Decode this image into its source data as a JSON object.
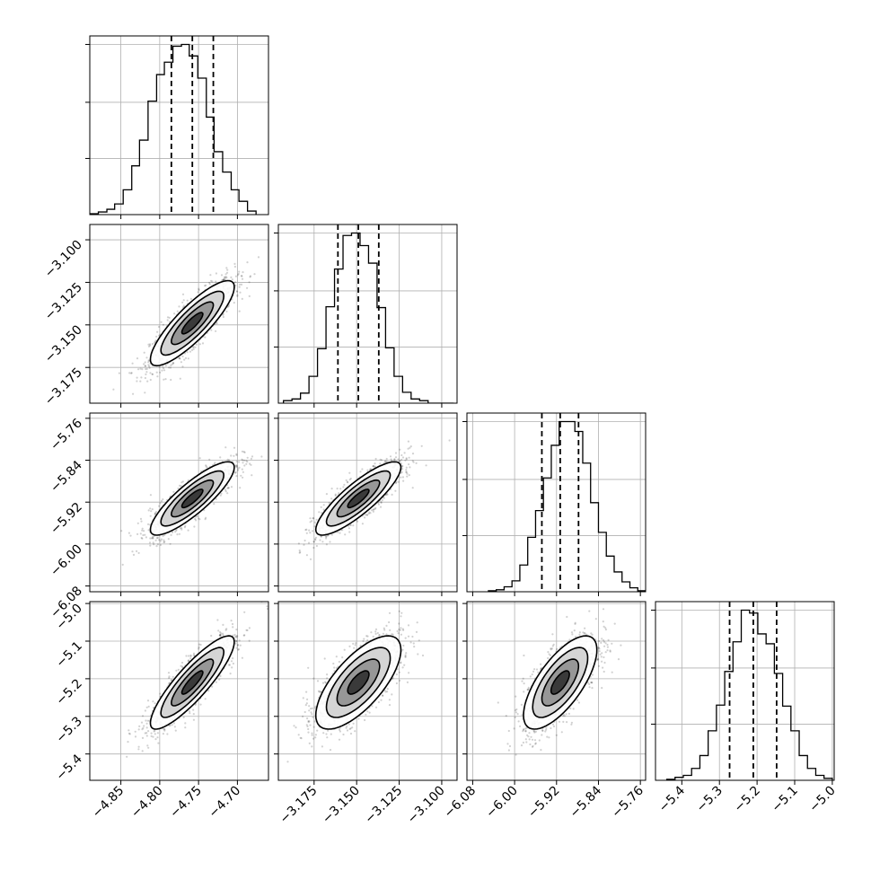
{
  "chart_data": {
    "type": "corner",
    "parameters": [
      {
        "name": "",
        "median": -4.758,
        "q16": -4.785,
        "q84": -4.731,
        "sigma": 0.027,
        "range": [
          -4.89,
          -4.66
        ],
        "ticks": [
          -4.85,
          -4.8,
          -4.75,
          -4.7
        ],
        "tick_labels": [
          "−4.85",
          "−4.80",
          "−4.75",
          "−4.70"
        ]
      },
      {
        "name": "",
        "median": -3.149,
        "q16": -3.161,
        "q84": -3.137,
        "sigma": 0.0125,
        "range": [
          -3.196,
          -3.091
        ],
        "ticks": [
          -3.175,
          -3.15,
          -3.125,
          -3.1
        ],
        "tick_labels": [
          "−3.175",
          "−3.150",
          "−3.125",
          "−3.100"
        ]
      },
      {
        "name": "",
        "median": -5.913,
        "q16": -5.948,
        "q84": -5.878,
        "sigma": 0.035,
        "range": [
          -6.091,
          -5.75
        ],
        "ticks": [
          -6.08,
          -6.0,
          -5.92,
          -5.84,
          -5.76
        ],
        "tick_labels": [
          "−6.08",
          "−6.00",
          "−5.92",
          "−5.84",
          "−5.76"
        ]
      },
      {
        "name": "",
        "median": -5.21,
        "q16": -5.273,
        "q84": -5.148,
        "sigma": 0.062,
        "range": [
          -5.47,
          -4.995
        ],
        "ticks": [
          -5.4,
          -5.3,
          -5.2,
          -5.1,
          -5.0
        ],
        "tick_labels": [
          "−5.4",
          "−5.3",
          "−5.2",
          "−5.1",
          "−5.0"
        ]
      }
    ],
    "diagonal": [
      {
        "bin_edges": [
          -4.89,
          -4.879,
          -4.868,
          -4.858,
          -4.847,
          -4.836,
          -4.826,
          -4.815,
          -4.804,
          -4.794,
          -4.783,
          -4.772,
          -4.762,
          -4.751,
          -4.74,
          -4.73,
          -4.719,
          -4.708,
          -4.698,
          -4.687,
          -4.676
        ],
        "counts": [
          1,
          3,
          6,
          12,
          28,
          55,
          84,
          128,
          158,
          172,
          190,
          192,
          179,
          154,
          110,
          71,
          48,
          28,
          15,
          4
        ],
        "y_ticks": [
          0.33,
          0.66,
          1.0
        ]
      },
      {
        "bin_edges": [
          -3.193,
          -3.188,
          -3.183,
          -3.178,
          -3.173,
          -3.168,
          -3.163,
          -3.158,
          -3.153,
          -3.148,
          -3.143,
          -3.138,
          -3.133,
          -3.128,
          -3.123,
          -3.118,
          -3.113,
          -3.108,
          -3.103,
          -3.098,
          -3.093
        ],
        "counts": [
          3,
          5,
          12,
          32,
          65,
          115,
          160,
          200,
          203,
          188,
          167,
          114,
          66,
          32,
          13,
          5,
          3,
          0,
          0,
          0
        ],
        "y_ticks": [
          0.33,
          0.66,
          1.0
        ]
      },
      {
        "bin_edges": [
          -6.05,
          -6.035,
          -6.02,
          -6.005,
          -5.99,
          -5.975,
          -5.96,
          -5.945,
          -5.93,
          -5.915,
          -5.9,
          -5.885,
          -5.87,
          -5.855,
          -5.84,
          -5.825,
          -5.81,
          -5.795,
          -5.78,
          -5.765,
          -5.75
        ],
        "counts": [
          1,
          2,
          5,
          11,
          27,
          55,
          82,
          115,
          148,
          172,
          172,
          162,
          130,
          90,
          60,
          36,
          20,
          10,
          4,
          1
        ],
        "y_ticks": [
          0.33,
          0.66,
          1.0
        ]
      },
      {
        "bin_edges": [
          -5.44,
          -5.418,
          -5.396,
          -5.374,
          -5.352,
          -5.33,
          -5.308,
          -5.286,
          -5.264,
          -5.242,
          -5.22,
          -5.198,
          -5.176,
          -5.154,
          -5.132,
          -5.11,
          -5.088,
          -5.066,
          -5.044,
          -5.022,
          -5.0
        ],
        "counts": [
          1,
          3,
          5,
          12,
          25,
          50,
          76,
          110,
          140,
          172,
          169,
          148,
          138,
          108,
          75,
          50,
          25,
          12,
          5,
          2
        ],
        "y_ticks": [
          0.33,
          0.66,
          1.0
        ]
      }
    ],
    "correlations": [
      {
        "pair": [
          0,
          1
        ],
        "rho": 0.85
      },
      {
        "pair": [
          0,
          2
        ],
        "rho": 0.85
      },
      {
        "pair": [
          1,
          2
        ],
        "rho": 0.85
      },
      {
        "pair": [
          0,
          3
        ],
        "rho": 0.87
      },
      {
        "pair": [
          1,
          3
        ],
        "rho": 0.7
      },
      {
        "pair": [
          2,
          3
        ],
        "rho": 0.7
      }
    ],
    "contour_levels_sigma": [
      0.5,
      1.0,
      1.5,
      2.0
    ],
    "quantiles": [
      0.16,
      0.5,
      0.84
    ],
    "grid": true,
    "colors": {
      "line": "#000000",
      "density": "#000000",
      "grid": "#b0b0b0"
    }
  }
}
